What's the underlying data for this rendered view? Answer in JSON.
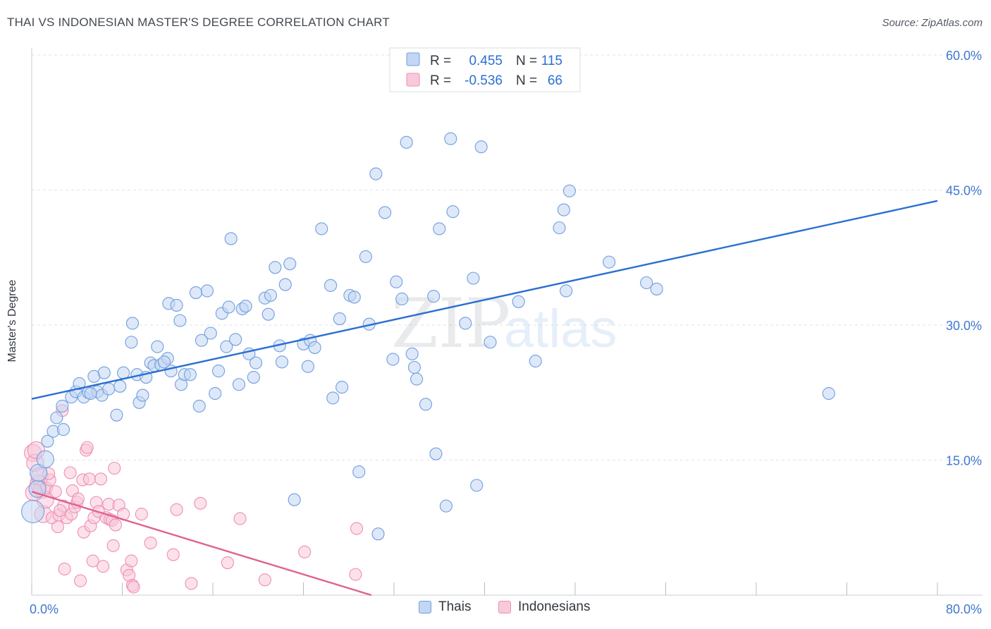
{
  "header": {
    "title": "THAI VS INDONESIAN MASTER'S DEGREE CORRELATION CHART",
    "source": "Source: ZipAtlas.com"
  },
  "watermark": {
    "zip": "ZIP",
    "atlas": "atlas"
  },
  "chart_data": {
    "type": "scatter",
    "title": "THAI VS INDONESIAN MASTER'S DEGREE CORRELATION CHART",
    "ylabel": "Master's Degree",
    "xlabel": "",
    "xlim": [
      0,
      80
    ],
    "ylim": [
      0,
      60
    ],
    "x_tick_labels": [
      {
        "value": 0,
        "label": "0.0%"
      },
      {
        "value": 80,
        "label": "80.0%"
      }
    ],
    "y_tick_labels": [
      {
        "value": 15,
        "label": "15.0%"
      },
      {
        "value": 30,
        "label": "30.0%"
      },
      {
        "value": 45,
        "label": "45.0%"
      },
      {
        "value": 60,
        "label": "60.0%"
      }
    ],
    "grid": true,
    "legend_placement": "top-center",
    "stats": [
      {
        "r_label": "R =",
        "r_value": "0.455",
        "n_label": "N =",
        "n_value": "115"
      },
      {
        "r_label": "R =",
        "r_value": "-0.536",
        "n_label": "N =",
        "n_value": "66"
      }
    ],
    "series": [
      {
        "name": "Thais",
        "color": "#6f9fe0",
        "fill": "#c3d6f3",
        "trend_color": "#2b6fd1",
        "trend": {
          "x": [
            0,
            80
          ],
          "y": [
            21.8,
            43.8
          ]
        },
        "points": [
          [
            0.1,
            9.3
          ],
          [
            0.5,
            11.8
          ],
          [
            0.6,
            13.6
          ],
          [
            1.2,
            15.1
          ],
          [
            1.4,
            17.1
          ],
          [
            1.9,
            18.2
          ],
          [
            2.2,
            19.7
          ],
          [
            2.8,
            18.4
          ],
          [
            2.7,
            21.0
          ],
          [
            3.5,
            22.0
          ],
          [
            3.9,
            22.6
          ],
          [
            4.2,
            23.5
          ],
          [
            4.6,
            22.0
          ],
          [
            5.0,
            22.5
          ],
          [
            5.5,
            24.3
          ],
          [
            5.8,
            22.6
          ],
          [
            6.2,
            22.2
          ],
          [
            6.4,
            24.7
          ],
          [
            6.8,
            22.9
          ],
          [
            7.5,
            20.0
          ],
          [
            7.8,
            23.2
          ],
          [
            8.1,
            24.7
          ],
          [
            8.8,
            28.1
          ],
          [
            8.9,
            30.2
          ],
          [
            9.3,
            24.5
          ],
          [
            9.5,
            21.4
          ],
          [
            9.8,
            22.2
          ],
          [
            10.1,
            24.2
          ],
          [
            10.5,
            25.8
          ],
          [
            10.8,
            25.5
          ],
          [
            11.1,
            27.6
          ],
          [
            11.4,
            25.6
          ],
          [
            12.0,
            26.3
          ],
          [
            12.1,
            32.4
          ],
          [
            12.3,
            24.9
          ],
          [
            12.8,
            32.2
          ],
          [
            13.1,
            30.5
          ],
          [
            13.2,
            23.4
          ],
          [
            13.5,
            24.5
          ],
          [
            14.0,
            24.5
          ],
          [
            14.5,
            33.6
          ],
          [
            14.8,
            21.0
          ],
          [
            15.0,
            28.3
          ],
          [
            15.5,
            33.8
          ],
          [
            15.8,
            29.1
          ],
          [
            16.2,
            22.4
          ],
          [
            16.5,
            24.9
          ],
          [
            16.8,
            31.3
          ],
          [
            17.2,
            27.6
          ],
          [
            17.4,
            32.0
          ],
          [
            17.6,
            39.6
          ],
          [
            18.0,
            28.4
          ],
          [
            18.3,
            23.4
          ],
          [
            18.6,
            31.8
          ],
          [
            18.9,
            32.1
          ],
          [
            19.2,
            26.8
          ],
          [
            19.6,
            24.2
          ],
          [
            19.8,
            25.8
          ],
          [
            20.6,
            33.0
          ],
          [
            20.9,
            31.2
          ],
          [
            21.1,
            33.3
          ],
          [
            21.5,
            36.4
          ],
          [
            21.9,
            27.7
          ],
          [
            22.1,
            25.9
          ],
          [
            22.4,
            34.5
          ],
          [
            22.8,
            36.8
          ],
          [
            23.2,
            10.6
          ],
          [
            24.0,
            27.9
          ],
          [
            24.4,
            25.4
          ],
          [
            24.6,
            28.3
          ],
          [
            25.0,
            27.5
          ],
          [
            25.6,
            40.7
          ],
          [
            26.4,
            34.4
          ],
          [
            26.6,
            21.9
          ],
          [
            27.2,
            30.7
          ],
          [
            27.4,
            23.1
          ],
          [
            28.1,
            33.3
          ],
          [
            28.5,
            33.1
          ],
          [
            28.9,
            13.7
          ],
          [
            29.5,
            37.6
          ],
          [
            29.8,
            30.1
          ],
          [
            30.6,
            6.8
          ],
          [
            30.4,
            46.8
          ],
          [
            31.2,
            42.5
          ],
          [
            31.9,
            26.2
          ],
          [
            32.2,
            34.8
          ],
          [
            32.7,
            32.9
          ],
          [
            33.1,
            50.3
          ],
          [
            33.6,
            26.8
          ],
          [
            33.8,
            25.3
          ],
          [
            34.0,
            24.0
          ],
          [
            34.8,
            21.2
          ],
          [
            35.5,
            33.2
          ],
          [
            35.7,
            15.7
          ],
          [
            36.0,
            40.7
          ],
          [
            36.6,
            9.9
          ],
          [
            37.2,
            42.6
          ],
          [
            38.3,
            30.2
          ],
          [
            39.0,
            35.2
          ],
          [
            39.3,
            12.2
          ],
          [
            39.7,
            49.8
          ],
          [
            40.5,
            28.1
          ],
          [
            43.0,
            32.6
          ],
          [
            44.5,
            26.0
          ],
          [
            46.6,
            40.8
          ],
          [
            47.0,
            42.8
          ],
          [
            47.2,
            33.8
          ],
          [
            47.5,
            44.9
          ],
          [
            51.0,
            37.0
          ],
          [
            54.3,
            34.7
          ],
          [
            55.2,
            34.0
          ],
          [
            70.4,
            22.4
          ],
          [
            37.0,
            50.7
          ],
          [
            11.7,
            25.9
          ],
          [
            5.2,
            22.4
          ]
        ]
      },
      {
        "name": "Indonesians",
        "color": "#ef8fb1",
        "fill": "#f8c9da",
        "trend_color": "#e0628f",
        "trend": {
          "x": [
            0,
            30
          ],
          "y": [
            11.5,
            0.0
          ]
        },
        "points": [
          [
            0.1,
            15.8
          ],
          [
            0.3,
            14.7
          ],
          [
            0.4,
            16.1
          ],
          [
            0.6,
            12.4
          ],
          [
            0.7,
            13.2
          ],
          [
            0.9,
            11.7
          ],
          [
            1.0,
            9.0
          ],
          [
            1.2,
            10.6
          ],
          [
            1.3,
            11.9
          ],
          [
            1.6,
            12.8
          ],
          [
            1.8,
            8.6
          ],
          [
            2.1,
            11.5
          ],
          [
            2.3,
            7.6
          ],
          [
            2.4,
            8.9
          ],
          [
            2.7,
            20.5
          ],
          [
            2.8,
            9.9
          ],
          [
            2.9,
            2.9
          ],
          [
            3.1,
            8.6
          ],
          [
            3.4,
            13.6
          ],
          [
            3.5,
            9.0
          ],
          [
            3.6,
            11.6
          ],
          [
            3.8,
            9.8
          ],
          [
            4.0,
            10.3
          ],
          [
            4.1,
            10.7
          ],
          [
            4.3,
            1.6
          ],
          [
            4.5,
            12.8
          ],
          [
            4.6,
            7.0
          ],
          [
            4.8,
            16.1
          ],
          [
            4.9,
            16.4
          ],
          [
            5.1,
            12.9
          ],
          [
            5.2,
            7.7
          ],
          [
            5.4,
            3.8
          ],
          [
            5.5,
            8.6
          ],
          [
            5.7,
            10.3
          ],
          [
            5.9,
            9.3
          ],
          [
            6.1,
            12.9
          ],
          [
            6.3,
            3.2
          ],
          [
            6.6,
            8.6
          ],
          [
            6.8,
            10.1
          ],
          [
            6.9,
            8.4
          ],
          [
            7.1,
            8.3
          ],
          [
            7.2,
            5.5
          ],
          [
            7.4,
            7.8
          ],
          [
            7.3,
            14.1
          ],
          [
            7.7,
            10.0
          ],
          [
            8.1,
            9.0
          ],
          [
            8.4,
            2.8
          ],
          [
            8.6,
            2.2
          ],
          [
            8.8,
            3.8
          ],
          [
            8.9,
            1.1
          ],
          [
            9.0,
            0.9
          ],
          [
            9.7,
            9.0
          ],
          [
            10.5,
            5.8
          ],
          [
            12.5,
            4.5
          ],
          [
            12.8,
            9.5
          ],
          [
            14.1,
            1.3
          ],
          [
            14.9,
            10.2
          ],
          [
            17.3,
            3.6
          ],
          [
            18.4,
            8.5
          ],
          [
            20.6,
            1.7
          ],
          [
            24.1,
            4.8
          ],
          [
            28.6,
            2.3
          ],
          [
            28.7,
            7.4
          ],
          [
            0.2,
            11.4
          ],
          [
            1.5,
            13.5
          ],
          [
            2.5,
            9.4
          ]
        ]
      }
    ]
  }
}
